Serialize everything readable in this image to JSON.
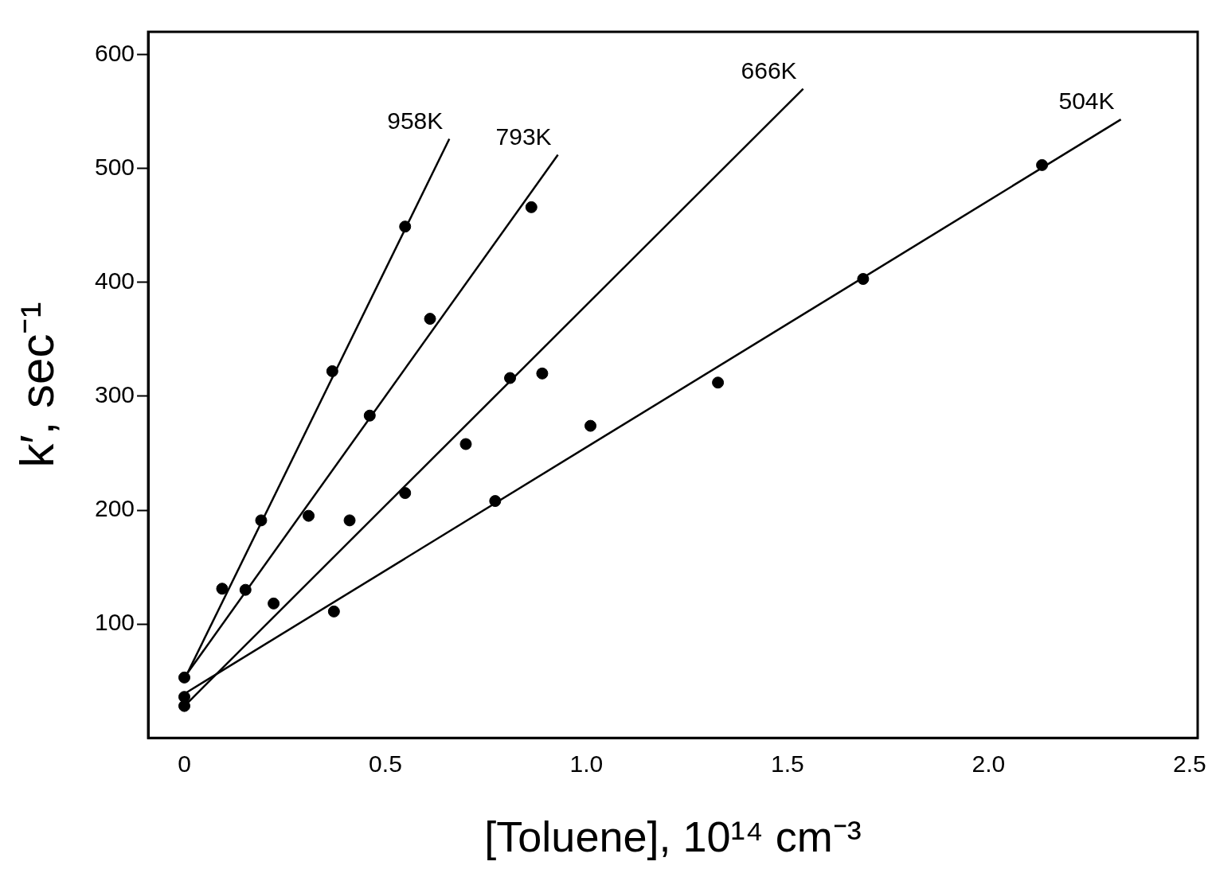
{
  "chart_data": {
    "type": "scatter",
    "xlabel": "[Toluene], 10¹⁴ cm⁻³",
    "ylabel": "k′, sec⁻¹",
    "xlim": [
      -0.09,
      2.52
    ],
    "ylim": [
      0,
      620
    ],
    "xticks": [
      {
        "value": 0,
        "label": "0"
      },
      0.5,
      {
        "value": 1,
        "label": "1.0"
      },
      1.5,
      {
        "value": 2,
        "label": "2.0"
      },
      2.5
    ],
    "yticks": [
      100,
      200,
      300,
      400,
      500,
      600
    ],
    "series": [
      {
        "color": "#000000",
        "marker": "circle",
        "x": [
          0,
          0.094,
          0.191,
          0.368,
          0.549
        ],
        "values": [
          53,
          131,
          191,
          322,
          449
        ]
      },
      {
        "color": "#000000",
        "marker": "circle",
        "x": [
          0.152,
          0.309,
          0.461,
          0.611,
          0.863
        ],
        "values": [
          130,
          195,
          283,
          368,
          466
        ]
      },
      {
        "color": "#000000",
        "marker": "circle",
        "x": [
          0,
          0.222,
          0.411,
          0.549,
          0.7,
          0.81,
          0.89
        ],
        "values": [
          28,
          118,
          191,
          215,
          258,
          316,
          320
        ]
      },
      {
        "color": "#000000",
        "marker": "circle",
        "x": [
          0,
          0.372,
          0.773,
          1.01,
          1.327,
          1.688,
          2.133
        ],
        "values": [
          36,
          111,
          208,
          274,
          312,
          403,
          503
        ]
      },
      {
        "type": "line",
        "name": "958K",
        "color": "#000000",
        "marker": "none",
        "x": [
          0.008,
          0.659
        ],
        "values": [
          57,
          526
        ]
      },
      {
        "type": "line",
        "name": "793K",
        "color": "#000000",
        "marker": "none",
        "x": [
          0.008,
          0.929
        ],
        "values": [
          57,
          512
        ]
      },
      {
        "type": "line",
        "name": "666K",
        "color": "#000000",
        "marker": "none",
        "x": [
          0.006,
          1.539
        ],
        "values": [
          30,
          570
        ]
      },
      {
        "type": "line",
        "name": "504K",
        "color": "#000000",
        "marker": "none",
        "x": [
          0.006,
          2.329
        ],
        "values": [
          40,
          543
        ]
      }
    ]
  }
}
